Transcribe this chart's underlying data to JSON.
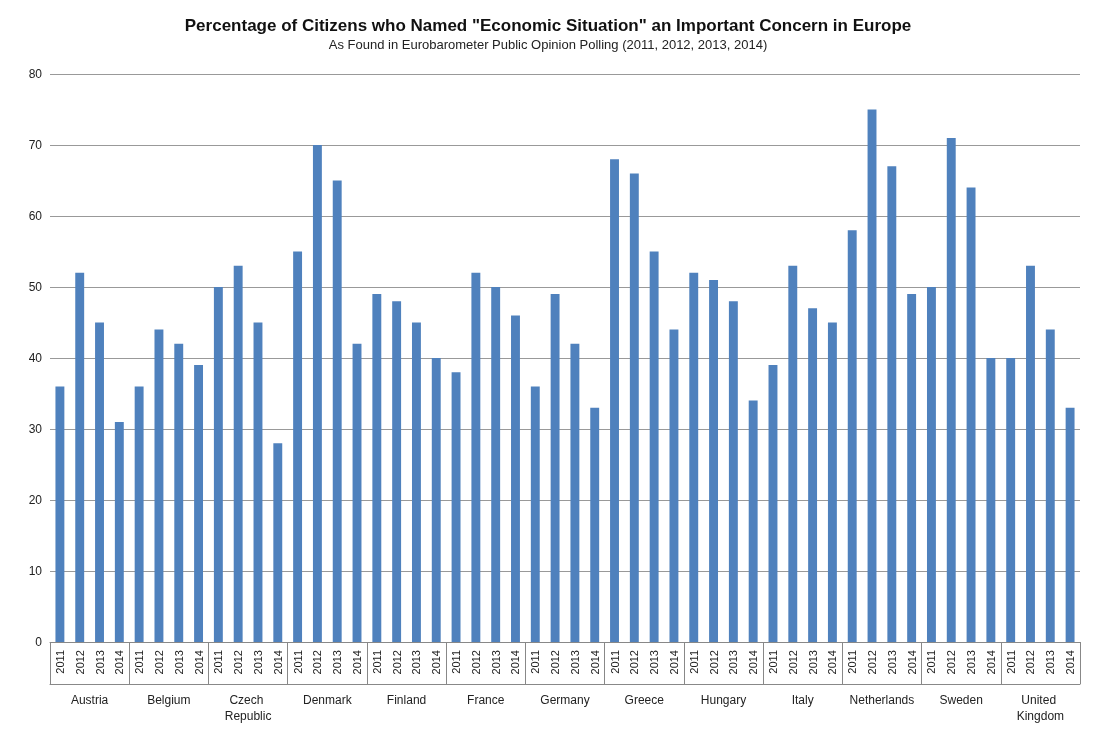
{
  "chart_data": {
    "type": "bar",
    "title": "Percentage of Citizens who Named \"Economic Situation\" an Important Concern in Europe",
    "subtitle": "As Found in Eurobarometer Public Opinion Polling (2011, 2012, 2013, 2014)",
    "categories": [
      "2011",
      "2012",
      "2013",
      "2014",
      "2011",
      "2012",
      "2013",
      "2014",
      "2011",
      "2012",
      "2013",
      "2014",
      "2011",
      "2012",
      "2013",
      "2014",
      "2011",
      "2012",
      "2013",
      "2014",
      "2011",
      "2012",
      "2013",
      "2014",
      "2011",
      "2012",
      "2013",
      "2014",
      "2011",
      "2012",
      "2013",
      "2014",
      "2011",
      "2012",
      "2013",
      "2014",
      "2011",
      "2012",
      "2013",
      "2014",
      "2011",
      "2012",
      "2013",
      "2014",
      "2011",
      "2012",
      "2013",
      "2014",
      "2011",
      "2012",
      "2013",
      "2014"
    ],
    "annotations": [
      "Austria",
      "Belgium",
      "Czech Republic",
      "Denmark",
      "Finland",
      "France",
      "Germany",
      "Greece",
      "Hungary",
      "Italy",
      "Netherlands",
      "Sweden",
      "United Kingdom"
    ],
    "values": [
      36,
      52,
      45,
      31,
      36,
      44,
      42,
      39,
      50,
      53,
      45,
      28,
      55,
      70,
      65,
      42,
      49,
      48,
      45,
      40,
      38,
      52,
      50,
      46,
      36,
      49,
      42,
      33,
      68,
      66,
      55,
      44,
      52,
      51,
      48,
      34,
      39,
      53,
      47,
      45,
      58,
      75,
      67,
      49,
      50,
      71,
      64,
      40,
      40,
      53,
      44,
      33
    ],
    "color": "#4f81bd",
    "ylim": [
      0,
      80
    ],
    "yticks": [
      0,
      10,
      20,
      30,
      40,
      50,
      60,
      70,
      80
    ],
    "grid": "y"
  }
}
